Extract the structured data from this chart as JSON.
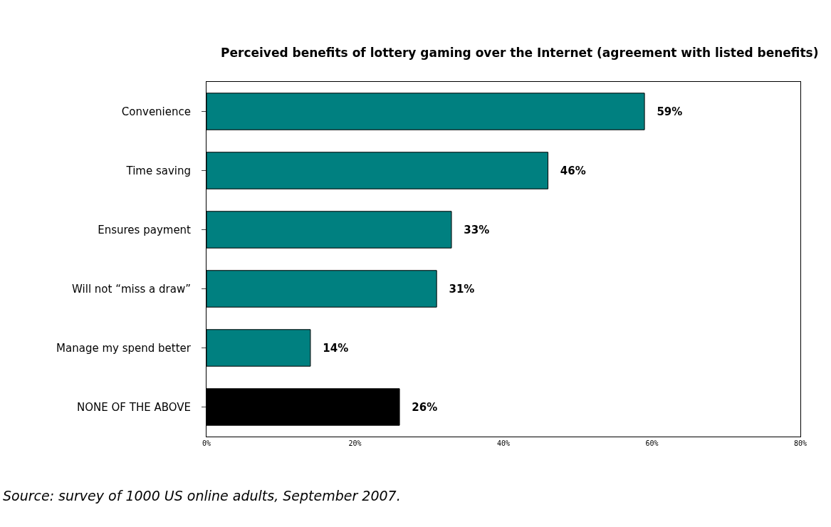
{
  "chart_data": {
    "type": "bar",
    "orientation": "horizontal",
    "title": "Perceived benefits of lottery gaming over the Internet (agreement with listed benefits)",
    "categories": [
      "Convenience",
      "Time saving",
      "Ensures payment",
      "Will not “miss a draw”",
      "Manage my spend better",
      "NONE OF THE ABOVE"
    ],
    "values": [
      59,
      46,
      33,
      31,
      14,
      26
    ],
    "value_labels": [
      "59%",
      "46%",
      "33%",
      "31%",
      "14%",
      "26%"
    ],
    "colors": [
      "#008080",
      "#008080",
      "#008080",
      "#008080",
      "#008080",
      "#000000"
    ],
    "xlim": [
      0,
      80
    ],
    "xticks": [
      {
        "value": 0,
        "label": "0%"
      },
      {
        "value": 20,
        "label": "20%"
      },
      {
        "value": 40,
        "label": "40%"
      },
      {
        "value": 60,
        "label": "60%"
      },
      {
        "value": 80,
        "label": "80%"
      }
    ],
    "legend": false,
    "annotations": [
      "Source: survey of 1000 US online adults, September 2007."
    ]
  }
}
